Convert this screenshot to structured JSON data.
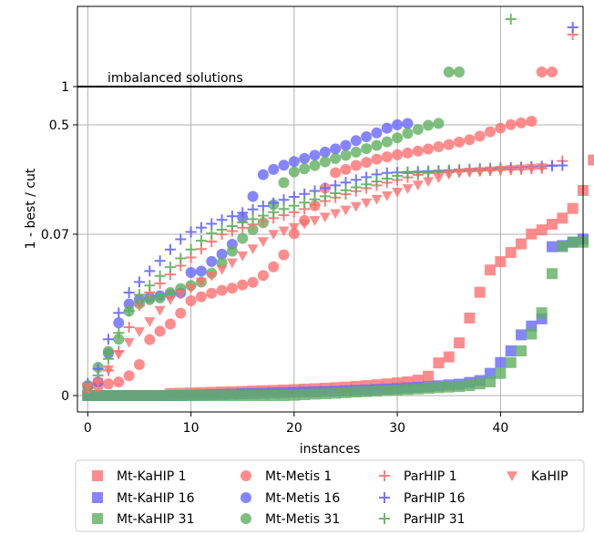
{
  "chart_data": {
    "type": "scatter",
    "xlabel": "instances",
    "ylabel": "1 - best / cut",
    "xlim": [
      -1,
      48
    ],
    "x_ticks": [
      0,
      10,
      20,
      30,
      40
    ],
    "y_ticks": [
      {
        "value": 0,
        "label": "0"
      },
      {
        "value": 0.07,
        "label": "0.07"
      },
      {
        "value": 0.5,
        "label": "0.5"
      },
      {
        "value": 1,
        "label": "1"
      }
    ],
    "y_scale": "symlog-like (nonlinear)",
    "grid": true,
    "annotation": "imbalanced solutions",
    "legend_position": "bottom",
    "series": [
      {
        "name": "Mt-KaHIP 1",
        "marker": "square",
        "color": "#ff6f6f",
        "y": [
          0,
          0,
          0,
          0,
          0,
          0,
          0,
          0,
          0.0014,
          0.0016,
          0.0018,
          0.002,
          0.0022,
          0.0024,
          0.0026,
          0.0028,
          0.0031,
          0.0033,
          0.0035,
          0.0038,
          0.0041,
          0.0044,
          0.0047,
          0.005,
          0.0054,
          0.0058,
          0.0063,
          0.0068,
          0.0074,
          0.008,
          0.0087,
          0.0094,
          0.0102,
          0.0112,
          0.0145,
          0.016,
          0.0195,
          0.0257,
          0.0351,
          0.0485,
          0.0535,
          0.059,
          0.0642,
          0.0703,
          0.0757,
          0.0831,
          0.0911,
          0.1038,
          0.1273,
          0.2455,
          0.307
        ]
      },
      {
        "name": "Mt-KaHIP 16",
        "marker": "square",
        "color": "#6666ff",
        "y": [
          0,
          0,
          0,
          0,
          0,
          0,
          0,
          0,
          0,
          0,
          0.0002,
          0.0004,
          0.0006,
          0.0008,
          0.001,
          0.0012,
          0.0014,
          0.0016,
          0.0018,
          0.002,
          0.0022,
          0.0024,
          0.0026,
          0.0028,
          0.003,
          0.0033,
          0.0036,
          0.0039,
          0.0042,
          0.0045,
          0.0049,
          0.0053,
          0.0057,
          0.0062,
          0.0067,
          0.0073,
          0.0078,
          0.009,
          0.0101,
          0.0119,
          0.0146,
          0.0175,
          0.0215,
          0.0237,
          0.0255,
          0.0625,
          0.0632,
          0.0652,
          0.0671
        ]
      },
      {
        "name": "Mt-KaHIP 31",
        "marker": "square",
        "color": "#5faf5f",
        "y": [
          0,
          0,
          0,
          0,
          0,
          0,
          0,
          0,
          0,
          0,
          0,
          0,
          0,
          0,
          0,
          0,
          0,
          0,
          0,
          0,
          0.0002,
          0.0006,
          0.001,
          0.0013,
          0.0016,
          0.002,
          0.0024,
          0.0027,
          0.0031,
          0.0035,
          0.0038,
          0.0042,
          0.0046,
          0.005,
          0.0054,
          0.0058,
          0.0062,
          0.0068,
          0.008,
          0.0094,
          0.0119,
          0.0146,
          0.0175,
          0.0217,
          0.027,
          0.0463,
          0.0625,
          0.0653,
          0.0652
        ]
      },
      {
        "name": "Mt-Metis 1",
        "marker": "circle",
        "color": "#ff6f6f",
        "y": [
          0.0054,
          0.0065,
          0.008,
          0.0093,
          0.0113,
          0.0141,
          0.0203,
          0.0224,
          0.0242,
          0.0269,
          0.03,
          0.0324,
          0.0345,
          0.0362,
          0.0376,
          0.0395,
          0.0411,
          0.0452,
          0.0504,
          0.0576,
          0.0707,
          0.088,
          0.1073,
          0.1305,
          0.1537,
          0.1771,
          0.2062,
          0.2287,
          0.2512,
          0.268,
          0.2838,
          0.2959,
          0.3098,
          0.3249,
          0.3413,
          0.3575,
          0.3755,
          0.3923,
          0.4183,
          0.4499,
          0.4765,
          0.5035,
          0.526,
          0.5474,
          1.05,
          1.05
        ]
      },
      {
        "name": "Mt-Metis 16",
        "marker": "circle",
        "color": "#6666ff",
        "y": [
          0.0068,
          0.0094,
          0.0169,
          0.0245,
          0.0292,
          0.0308,
          0.032,
          0.033,
          0.0338,
          0.0347,
          0.047,
          0.0478,
          0.0536,
          0.058,
          0.064,
          0.092,
          0.1195,
          0.1481,
          0.1776,
          0.2074,
          0.2339,
          0.2563,
          0.28,
          0.3027,
          0.3257,
          0.3517,
          0.3857,
          0.4143,
          0.4425,
          0.4762,
          0.5011,
          0.5179
        ]
      },
      {
        "name": "Mt-Metis 31",
        "marker": "circle",
        "color": "#5faf5f",
        "y": [
          0.0064,
          0.0134,
          0.0174,
          0.0204,
          0.0274,
          0.0293,
          0.0307,
          0.0317,
          0.0349,
          0.0373,
          0.0392,
          0.0412,
          0.0466,
          0.0528,
          0.0598,
          0.0675,
          0.0759,
          0.0851,
          0.1088,
          0.1376,
          0.1588,
          0.182,
          0.2056,
          0.2321,
          0.2561,
          0.2794,
          0.3028,
          0.3275,
          0.3512,
          0.3766,
          0.4063,
          0.4379,
          0.4666,
          0.4968,
          0.5199,
          1.05,
          1.05
        ]
      },
      {
        "name": "ParHIP 1",
        "marker": "plus",
        "color": "#ff6f6f",
        "y": [
          0.0074,
          0.0094,
          0.0126,
          0.0174,
          0.0234,
          0.0289,
          0.035,
          0.0404,
          0.0458,
          0.0511,
          0.056,
          0.0611,
          0.0656,
          0.0699,
          0.0741,
          0.0785,
          0.0828,
          0.087,
          0.0911,
          0.095,
          0.0988,
          0.103,
          0.1084,
          0.1135,
          0.1181,
          0.1224,
          0.1264,
          0.1303,
          0.134,
          0.1376,
          0.1411,
          0.1445,
          0.1478,
          0.1511,
          0.1543,
          0.1575,
          0.1606,
          0.1637,
          0.1668,
          0.1698,
          0.1728,
          0.1757,
          0.1786,
          0.1815,
          0.1843,
          0.2073,
          0.238,
          1.08
        ]
      },
      {
        "name": "ParHIP 16",
        "marker": "plus",
        "color": "#6666ff",
        "y": [
          0.0083,
          0.013,
          0.0204,
          0.027,
          0.0349,
          0.0413,
          0.0479,
          0.054,
          0.0608,
          0.067,
          0.073,
          0.0786,
          0.0838,
          0.0888,
          0.0936,
          0.0982,
          0.1026,
          0.1069,
          0.111,
          0.1151,
          0.119,
          0.1229,
          0.1267,
          0.1304,
          0.1341,
          0.1377,
          0.1413,
          0.1448,
          0.1483,
          0.1517,
          0.1551,
          0.1585,
          0.1618,
          0.1651,
          0.1684,
          0.1716,
          0.1748,
          0.178,
          0.1812,
          0.1844,
          0.1876,
          0.1908,
          0.194,
          0.1971,
          0.2002,
          0.2033,
          0.2064,
          1.14
        ]
      },
      {
        "name": "ParHIP 31",
        "marker": "plus",
        "color": "#5faf5f",
        "y": [
          0.0078,
          0.0114,
          0.0155,
          0.022,
          0.0275,
          0.0336,
          0.0392,
          0.0449,
          0.0502,
          0.0555,
          0.0608,
          0.0661,
          0.0712,
          0.076,
          0.0807,
          0.0854,
          0.0899,
          0.0944,
          0.0988,
          0.1031,
          0.1073,
          0.1115,
          0.1156,
          0.1197,
          0.1237,
          0.1276,
          0.1315,
          0.1353,
          0.1391,
          0.1428,
          0.1465,
          0.1501,
          0.1537,
          0.1573,
          0.1608,
          0.1643,
          0.1678,
          0.1712,
          0.1746,
          0.178,
          0.1814,
          1.16
        ]
      },
      {
        "name": "KaHIP",
        "marker": "triangle-down",
        "color": "#ff6f6f",
        "y": [
          0.0058,
          0.0091,
          0.0128,
          0.0166,
          0.0196,
          0.0223,
          0.0248,
          0.0276,
          0.0306,
          0.0339,
          0.0375,
          0.0412,
          0.0449,
          0.0488,
          0.0528,
          0.057,
          0.0612,
          0.0656,
          0.07,
          0.0744,
          0.0789,
          0.0834,
          0.088,
          0.0925,
          0.0971,
          0.1018,
          0.1064,
          0.1111,
          0.1158,
          0.1204,
          0.1251,
          0.1298,
          0.1344,
          0.1391,
          0.1438,
          0.1484,
          0.1531,
          0.1578,
          0.1624,
          0.1671,
          0.1718,
          0.1764,
          0.1811,
          0.1858,
          0.1905
        ]
      }
    ]
  }
}
